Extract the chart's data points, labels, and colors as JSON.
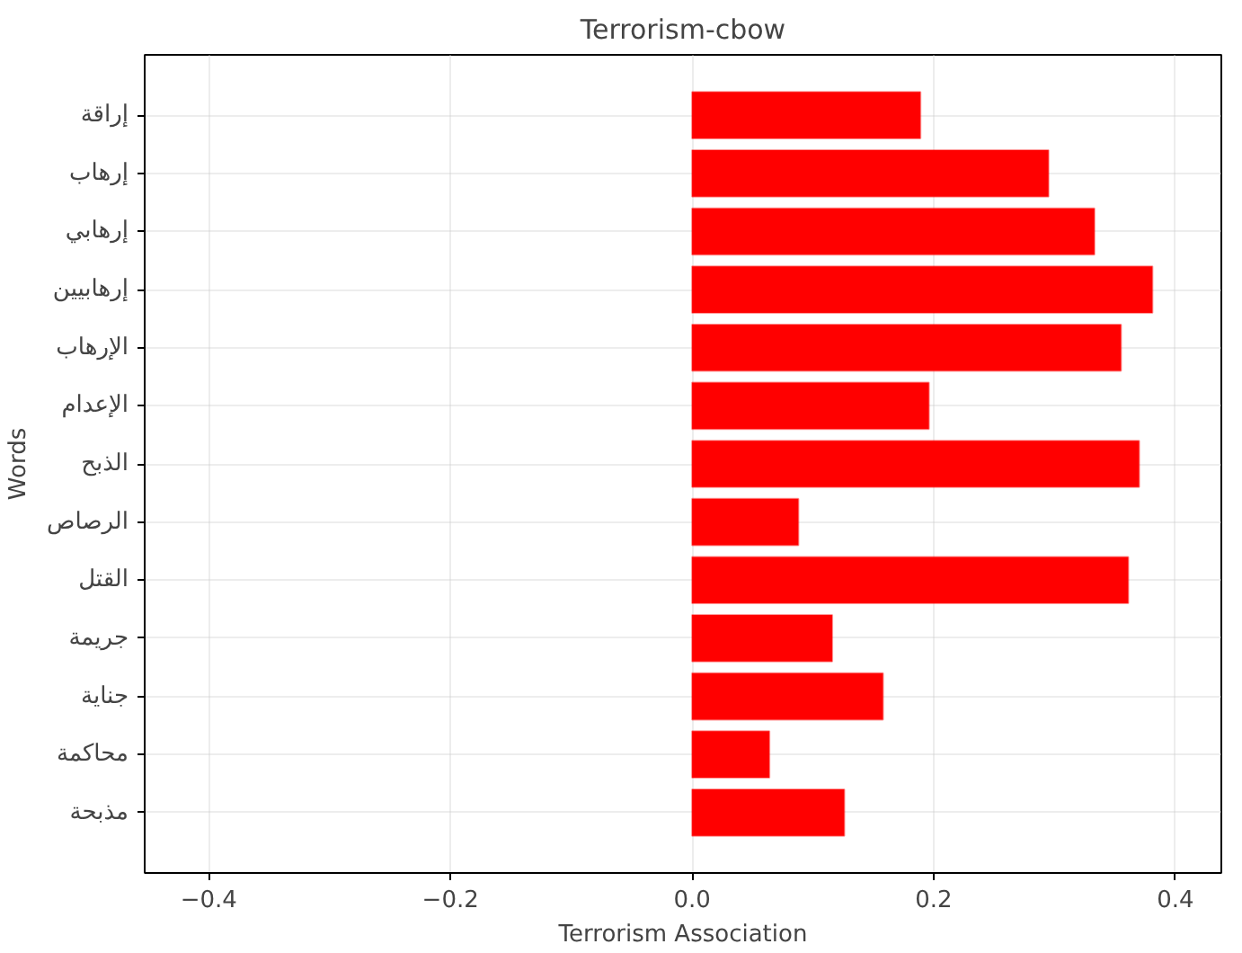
{
  "chart_data": {
    "type": "bar",
    "orientation": "horizontal",
    "title": "Terrorism-cbow",
    "xlabel": "Terrorism Association",
    "ylabel": "Words",
    "categories": [
      "إراقة",
      "إرهاب",
      "إرهابي",
      "إرهابيين",
      "الإرهاب",
      "الإعدام",
      "الذبح",
      "الرصاص",
      "القتل",
      "جريمة",
      "جناية",
      "محاكمة",
      "مذبحة"
    ],
    "values": [
      0.189,
      0.295,
      0.333,
      0.381,
      0.355,
      0.196,
      0.37,
      0.088,
      0.361,
      0.116,
      0.158,
      0.064,
      0.126
    ],
    "color": "#ff0000",
    "xlim": [
      -0.453,
      0.438
    ],
    "xticks": [
      {
        "value": -0.4,
        "label": "−0.4"
      },
      {
        "value": -0.2,
        "label": "−0.2"
      },
      {
        "value": 0.0,
        "label": "0.0"
      },
      {
        "value": 0.2,
        "label": "0.2"
      },
      {
        "value": 0.4,
        "label": "0.4"
      }
    ],
    "grid": true
  }
}
